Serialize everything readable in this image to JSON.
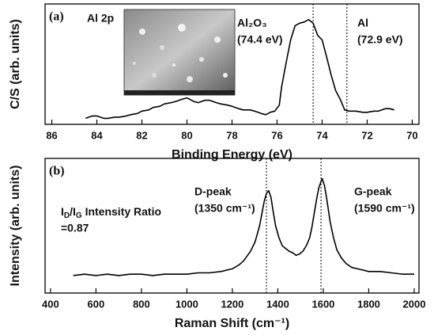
{
  "chart_data": [
    {
      "type": "line",
      "xlabel": "Binding Energy (eV)",
      "ylabel": "C/S (arb. units)",
      "xlim": [
        86.3,
        69.7
      ],
      "xticks": [
        86,
        84,
        82,
        80,
        78,
        76,
        74,
        72,
        70
      ],
      "ylim": [
        0,
        100
      ],
      "color": "#000000",
      "vlines": [
        74.4,
        72.9
      ],
      "annotations": [
        {
          "lines": [
            "(a)"
          ]
        },
        {
          "lines": [
            "Al 2p"
          ]
        },
        {
          "lines": [
            "Al₂O₃",
            "(74.4 eV)"
          ]
        },
        {
          "lines": [
            "Al",
            "(72.9 eV)"
          ]
        }
      ],
      "x": [
        84.5,
        84.2,
        84.0,
        83.7,
        83.5,
        83.2,
        83.0,
        82.7,
        82.5,
        82.2,
        82.0,
        81.7,
        81.5,
        81.2,
        81.0,
        80.7,
        80.5,
        80.2,
        80.0,
        79.7,
        79.5,
        79.2,
        79.0,
        78.7,
        78.5,
        78.2,
        78.0,
        77.7,
        77.5,
        77.2,
        77.0,
        76.7,
        76.5,
        76.3,
        76.1,
        75.9,
        75.8,
        75.6,
        75.4,
        75.2,
        75.0,
        74.8,
        74.6,
        74.4,
        74.2,
        74.0,
        73.8,
        73.6,
        73.4,
        73.2,
        73.0,
        72.8,
        72.5,
        72.2,
        72.0,
        71.7,
        71.5,
        71.2,
        71.0,
        70.8
      ],
      "values": [
        5,
        7,
        7,
        5,
        5,
        6,
        6,
        7,
        8,
        9,
        11,
        12,
        14,
        15,
        17,
        18,
        19,
        21,
        22,
        19,
        18,
        20,
        20,
        18,
        17,
        16,
        15,
        13,
        12,
        12,
        11,
        9,
        8,
        10,
        11,
        16,
        31,
        51,
        70,
        82,
        84,
        85,
        87,
        84,
        74,
        70,
        56,
        41,
        28,
        21,
        12,
        11,
        11,
        10,
        10,
        11,
        11,
        13,
        13,
        12
      ]
    },
    {
      "type": "line",
      "xlabel": "Raman Shift (cm⁻¹)",
      "ylabel": "Intensity (arb. units)",
      "xlim": [
        376,
        2021
      ],
      "xticks": [
        400,
        600,
        800,
        1000,
        1200,
        1400,
        1600,
        1800,
        2000
      ],
      "ylim": [
        0,
        100
      ],
      "color": "#000000",
      "vlines": [
        1350,
        1590
      ],
      "annotations": [
        {
          "lines": [
            "(b)"
          ]
        },
        {
          "lines": [
            "D-peak",
            "(1350 cm⁻¹)"
          ]
        },
        {
          "lines": [
            "G-peak",
            "(1590 cm⁻¹)"
          ]
        },
        {
          "lines": [
            [
              "I",
              "D",
              "/I",
              "G",
              " Intensity Ratio"
            ],
            "=0.87"
          ]
        }
      ],
      "x": [
        500,
        550,
        600,
        650,
        700,
        750,
        800,
        850,
        900,
        950,
        1000,
        1050,
        1100,
        1150,
        1200,
        1230,
        1250,
        1280,
        1300,
        1320,
        1330,
        1340,
        1350,
        1360,
        1370,
        1380,
        1390,
        1405,
        1420,
        1435,
        1450,
        1465,
        1480,
        1495,
        1510,
        1525,
        1540,
        1550,
        1560,
        1570,
        1580,
        1595,
        1605,
        1615,
        1630,
        1645,
        1660,
        1680,
        1700,
        1725,
        1750,
        1800,
        1850,
        1900,
        1950,
        2000
      ],
      "values": [
        13,
        14,
        13,
        14,
        13,
        14,
        14,
        13,
        14,
        14,
        14,
        15,
        15,
        16,
        18,
        21,
        24,
        31,
        38,
        50,
        59,
        68,
        74,
        76,
        71,
        60,
        50,
        41,
        35,
        33,
        31,
        30,
        28,
        29,
        31,
        35,
        41,
        49,
        59,
        69,
        78,
        85,
        80,
        70,
        53,
        41,
        32,
        26,
        22,
        19,
        18,
        16,
        16,
        15,
        14,
        14
      ]
    }
  ]
}
